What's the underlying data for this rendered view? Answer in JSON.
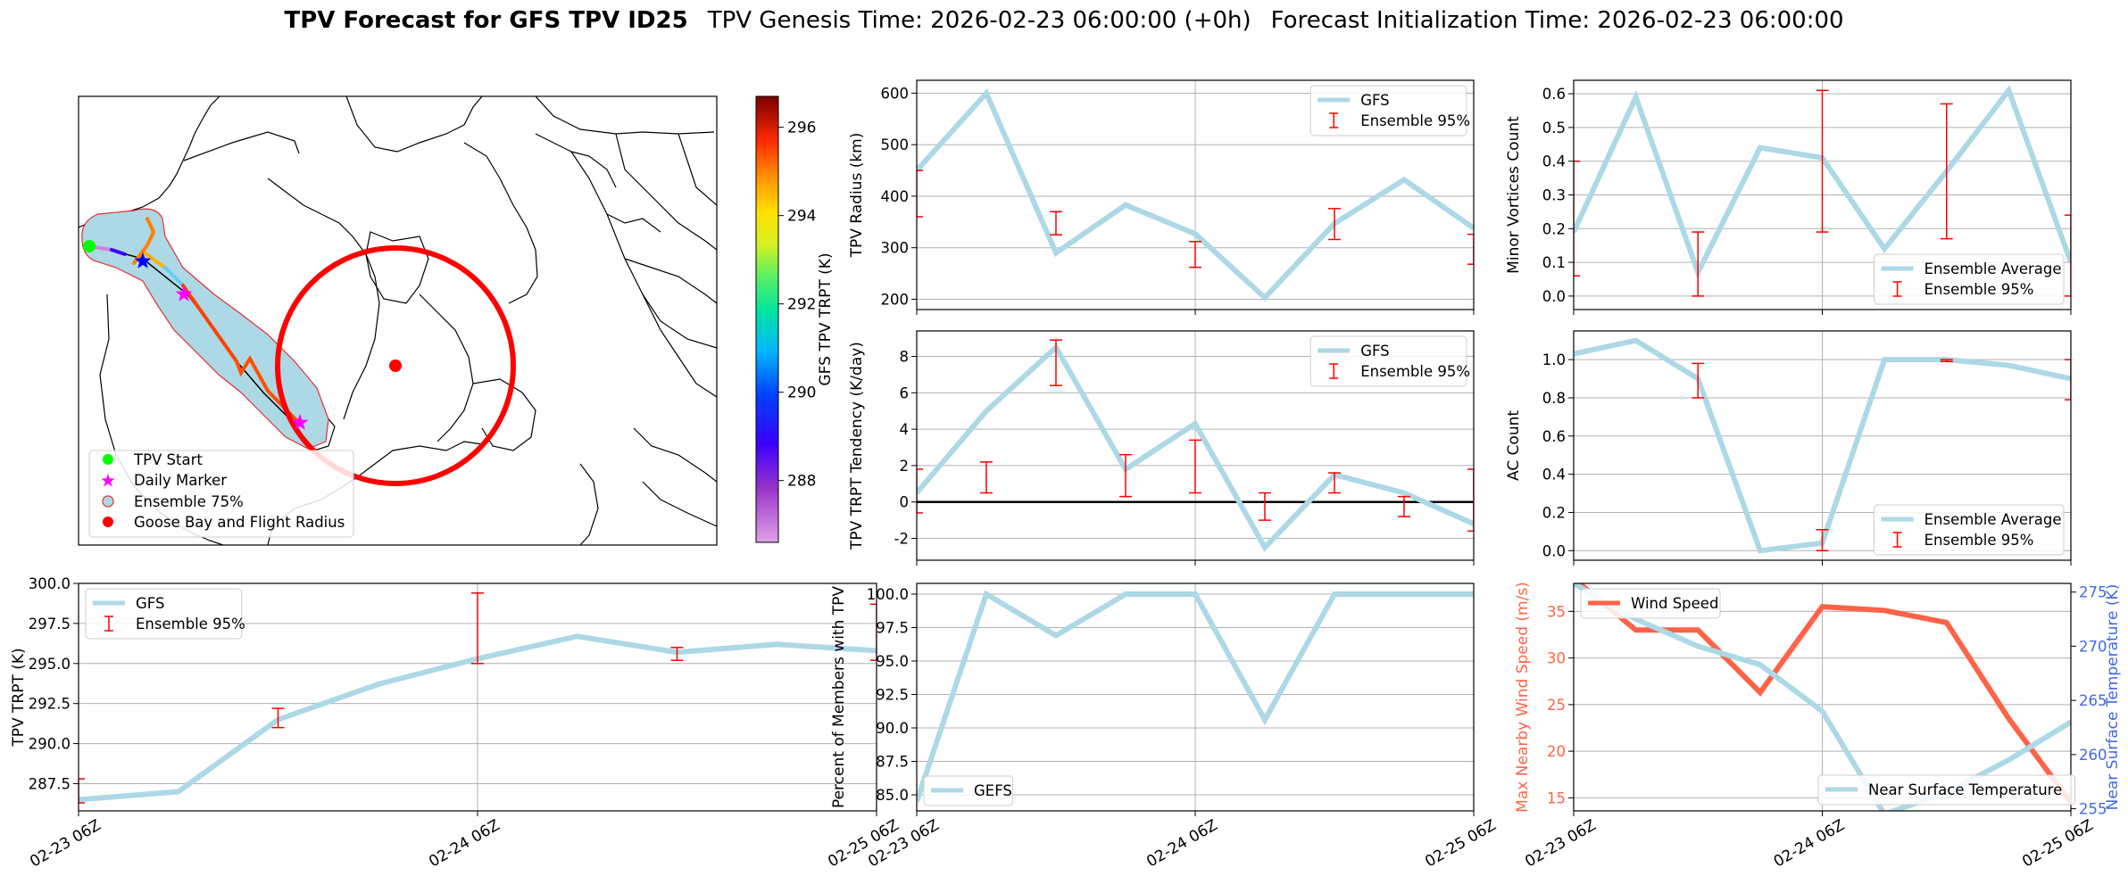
{
  "title": {
    "bold": "TPV Forecast for GFS TPV ID25",
    "genesis": "TPV Genesis Time: 2026-02-23 06:00:00 (+0h)",
    "init": "Forecast Initialization Time: 2026-02-23 06:00:00"
  },
  "colors": {
    "gfs": "#add8e6",
    "ensemble": "#ff0000",
    "wind": "#ff6347",
    "temp_axis": "#4169e1",
    "map_fill": "#add8e6",
    "flight_radius": "#ff0000",
    "tpv_start": "#00ff00",
    "daily_marker": "#ff00ff",
    "goose_bay": "#ff0000"
  },
  "time_ticks": [
    "02-23 06Z",
    "02-24 06Z",
    "02-25 06Z"
  ],
  "map": {
    "colorbar": {
      "label": "GFS TPV TRPT (K)",
      "ticks": [
        "288",
        "290",
        "292",
        "294",
        "296"
      ],
      "range": [
        286.6,
        296.7
      ]
    },
    "legend": [
      "TPV Start",
      "Daily Marker",
      "Ensemble 75%",
      "Goose Bay and Flight Radius"
    ]
  },
  "chart_data": [
    {
      "id": "radius",
      "type": "line",
      "ylabel": "TPV Radius (km)",
      "ylim": [
        180,
        625
      ],
      "yticks": [
        200,
        300,
        400,
        500,
        600
      ],
      "xlim": [
        0,
        48
      ],
      "series": [
        {
          "name": "GFS",
          "x": [
            0,
            6,
            12,
            18,
            24,
            30,
            36,
            42,
            48
          ],
          "values": [
            450,
            600,
            290,
            383,
            327,
            203,
            347,
            432,
            338
          ]
        }
      ],
      "errorbars": {
        "name": "Ensemble 95%",
        "x": [
          0,
          12,
          24,
          36,
          48
        ],
        "low": [
          360,
          325,
          262,
          316,
          268
        ],
        "high": [
          450,
          370,
          312,
          376,
          326
        ]
      },
      "legend": [
        "GFS",
        "Ensemble 95%"
      ],
      "legend_loc": "upper right"
    },
    {
      "id": "minor",
      "type": "line",
      "ylabel": "Minor Vortices Count",
      "ylim": [
        -0.04,
        0.64
      ],
      "yticks": [
        "0.0",
        "0.1",
        "0.2",
        "0.3",
        "0.4",
        "0.5",
        "0.6"
      ],
      "xlim": [
        0,
        48
      ],
      "series": [
        {
          "name": "Ensemble Average",
          "x": [
            0,
            6,
            12,
            18,
            24,
            30,
            36,
            42,
            48
          ],
          "values": [
            0.19,
            0.59,
            0.07,
            0.44,
            0.41,
            0.14,
            0.37,
            0.61,
            0.1
          ]
        }
      ],
      "errorbars": {
        "name": "Ensemble 95%",
        "x": [
          0,
          12,
          24,
          36,
          48
        ],
        "low": [
          0.06,
          0.0,
          0.19,
          0.17,
          0.0
        ],
        "high": [
          0.4,
          0.19,
          0.61,
          0.57,
          0.24
        ]
      },
      "legend": [
        "Ensemble Average",
        "Ensemble 95%"
      ],
      "legend_loc": "lower right"
    },
    {
      "id": "tendency",
      "type": "line",
      "ylabel": "TPV TRPT Tendency (K/day)",
      "ylim": [
        -3.2,
        9.4
      ],
      "yticks": [
        -2,
        0,
        2,
        4,
        6,
        8
      ],
      "xlim": [
        0,
        48
      ],
      "series": [
        {
          "name": "GFS",
          "x": [
            0,
            6,
            12,
            18,
            24,
            30,
            36,
            42,
            48
          ],
          "values": [
            0.5,
            5.0,
            8.5,
            1.8,
            4.3,
            -2.5,
            1.5,
            0.5,
            -1.2
          ]
        }
      ],
      "errorbars": {
        "name": "Ensemble 95%",
        "x": [
          0,
          6,
          12,
          18,
          24,
          30,
          36,
          42,
          48
        ],
        "low": [
          -0.6,
          0.5,
          6.4,
          0.3,
          0.5,
          -1.0,
          0.5,
          -0.8,
          -1.6
        ],
        "high": [
          1.8,
          2.2,
          8.9,
          2.6,
          3.4,
          0.5,
          1.6,
          0.3,
          1.8
        ]
      },
      "legend": [
        "GFS",
        "Ensemble 95%"
      ],
      "legend_loc": "upper right",
      "hline": 0
    },
    {
      "id": "ac",
      "type": "line",
      "ylabel": "AC Count",
      "ylim": [
        -0.05,
        1.15
      ],
      "yticks": [
        "0.0",
        "0.2",
        "0.4",
        "0.6",
        "0.8",
        "1.0"
      ],
      "xlim": [
        0,
        48
      ],
      "series": [
        {
          "name": "Ensemble Average",
          "x": [
            0,
            6,
            12,
            18,
            24,
            30,
            36,
            42,
            48
          ],
          "values": [
            1.03,
            1.1,
            0.9,
            0.0,
            0.04,
            1.0,
            1.0,
            0.97,
            0.9
          ]
        }
      ],
      "errorbars": {
        "name": "Ensemble 95%",
        "x": [
          12,
          24,
          36,
          48
        ],
        "low": [
          0.8,
          0.0,
          0.99,
          0.79
        ],
        "high": [
          0.98,
          0.11,
          1.0,
          1.0
        ]
      },
      "legend": [
        "Ensemble Average",
        "Ensemble 95%"
      ],
      "legend_loc": "lower right"
    },
    {
      "id": "trpt",
      "type": "line",
      "ylabel": "TPV TRPT (K)",
      "ylim": [
        285.8,
        300.0
      ],
      "yticks": [
        "287.5",
        "290.0",
        "292.5",
        "295.0",
        "297.5",
        "300.0"
      ],
      "xlim": [
        0,
        48
      ],
      "series": [
        {
          "name": "GFS",
          "x": [
            0,
            6,
            12,
            18,
            24,
            30,
            36,
            42,
            48
          ],
          "values": [
            286.5,
            287.0,
            291.5,
            293.7,
            295.3,
            296.7,
            295.7,
            296.2,
            295.8
          ]
        }
      ],
      "errorbars": {
        "name": "Ensemble 95%",
        "x": [
          0,
          12,
          24,
          36,
          48
        ],
        "low": [
          286.3,
          291.0,
          295.0,
          295.2,
          295.2
        ],
        "high": [
          287.8,
          292.2,
          299.4,
          296.0,
          298.7
        ]
      },
      "legend": [
        "GFS",
        "Ensemble 95%"
      ],
      "legend_loc": "upper left"
    },
    {
      "id": "percent",
      "type": "line",
      "ylabel": "Percent of Members with TPV",
      "ylim": [
        83.8,
        100.8
      ],
      "yticks": [
        "85.0",
        "87.5",
        "90.0",
        "92.5",
        "95.0",
        "97.5",
        "100.0"
      ],
      "xlim": [
        0,
        48
      ],
      "series": [
        {
          "name": "GEFS",
          "x": [
            0,
            6,
            12,
            18,
            24,
            30,
            36,
            42,
            48
          ],
          "values": [
            84.5,
            100,
            96.9,
            100,
            100,
            90.6,
            100,
            100,
            100
          ]
        }
      ],
      "legend": [
        "GEFS"
      ],
      "legend_loc": "lower left"
    },
    {
      "id": "wind",
      "type": "line",
      "ylabel": "Max Nearby Wind Speed (m/s)",
      "ylabel_right": "Near Surface Temperature (K)",
      "ylim": [
        13.6,
        38.0
      ],
      "yticks": [
        15,
        20,
        25,
        30,
        35
      ],
      "ylim_right": [
        254.8,
        275.8
      ],
      "yticks_right": [
        255,
        260,
        265,
        270,
        275
      ],
      "xlim": [
        0,
        48
      ],
      "series": [
        {
          "name": "Wind Speed",
          "axis": "left",
          "x": [
            0,
            6,
            12,
            18,
            24,
            30,
            36,
            42,
            48
          ],
          "values": [
            38.5,
            33.0,
            33.0,
            26.3,
            35.5,
            35.1,
            33.8,
            23.5,
            14.5
          ]
        },
        {
          "name": "Near Surface Temperature",
          "axis": "right",
          "x": [
            0,
            6,
            12,
            18,
            24,
            30,
            36,
            42,
            48
          ],
          "values": [
            275.8,
            272.5,
            270.0,
            268.3,
            264.0,
            254.5,
            256.5,
            259.5,
            263.0
          ]
        }
      ],
      "legend": [
        "Wind Speed",
        "Near Surface Temperature"
      ]
    }
  ]
}
